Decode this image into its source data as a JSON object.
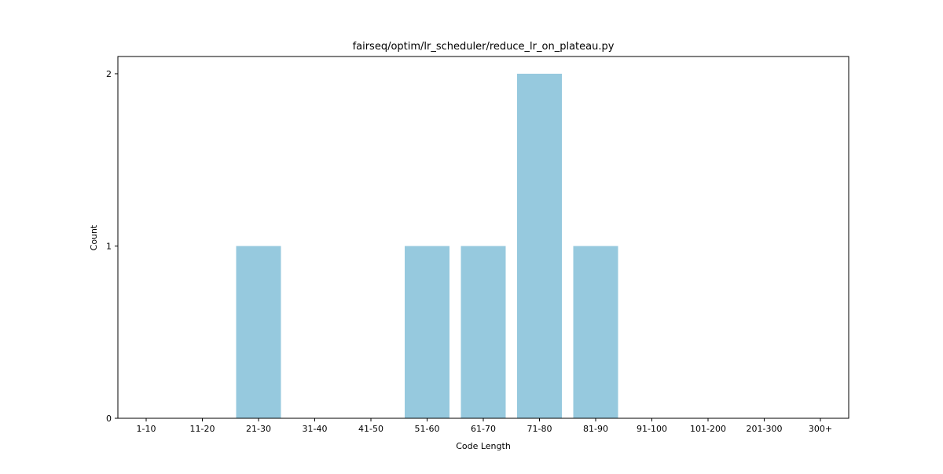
{
  "chart_data": {
    "type": "bar",
    "title": "fairseq/optim/lr_scheduler/reduce_lr_on_plateau.py",
    "xlabel": "Code Length",
    "ylabel": "Count",
    "categories": [
      "1-10",
      "11-20",
      "21-30",
      "31-40",
      "41-50",
      "51-60",
      "61-70",
      "71-80",
      "81-90",
      "91-100",
      "101-200",
      "201-300",
      "300+"
    ],
    "values": [
      0,
      0,
      1,
      0,
      0,
      1,
      1,
      2,
      1,
      0,
      0,
      0,
      0
    ],
    "ylim": [
      0,
      2.1
    ],
    "yticks": [
      0,
      1,
      2
    ],
    "bar_color": "#96c9de",
    "grid": false,
    "legend": false
  }
}
